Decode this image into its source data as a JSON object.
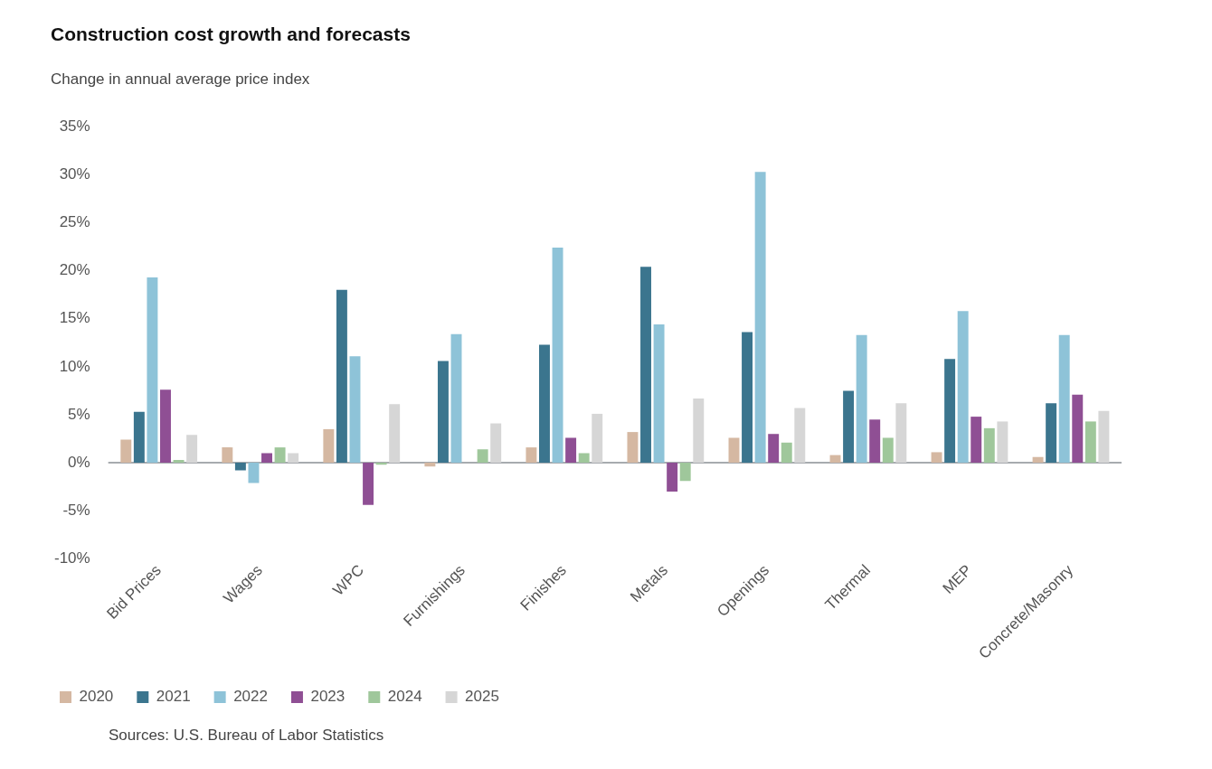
{
  "chart_data": {
    "type": "bar",
    "title": "Construction cost growth and forecasts",
    "subtitle": "Change in annual average price index",
    "categories": [
      "Bid Prices",
      "Wages",
      "WPC",
      "Furnishings",
      "Finishes",
      "Metals",
      "Openings",
      "Thermal",
      "MEP",
      "Concrete/Masonry"
    ],
    "series": [
      {
        "name": "2020",
        "color": "#d5b8a2",
        "values": [
          2.4,
          1.6,
          3.5,
          -0.4,
          1.6,
          3.2,
          2.6,
          0.8,
          1.1,
          0.6
        ]
      },
      {
        "name": "2021",
        "color": "#3b758e",
        "values": [
          5.3,
          -0.8,
          18.0,
          10.6,
          12.3,
          20.4,
          13.6,
          7.5,
          10.8,
          6.2
        ]
      },
      {
        "name": "2022",
        "color": "#8ec3d8",
        "values": [
          19.3,
          -2.1,
          11.1,
          13.4,
          22.4,
          14.4,
          30.3,
          13.3,
          15.8,
          13.3
        ]
      },
      {
        "name": "2023",
        "color": "#8f4f94",
        "values": [
          7.6,
          1.0,
          -4.4,
          null,
          2.6,
          -3.0,
          3.0,
          4.5,
          4.8,
          7.1
        ]
      },
      {
        "name": "2024",
        "color": "#9fc79b",
        "values": [
          0.3,
          1.6,
          -0.2,
          1.4,
          1.0,
          -1.9,
          2.1,
          2.6,
          3.6,
          4.3
        ]
      },
      {
        "name": "2025",
        "color": "#d6d6d6",
        "values": [
          2.9,
          1.0,
          6.1,
          4.1,
          5.1,
          6.7,
          5.7,
          6.2,
          4.3,
          5.4
        ]
      }
    ],
    "ylim": [
      -10,
      35
    ],
    "yticks": [
      {
        "value": -10,
        "label": "-10%"
      },
      {
        "value": -5,
        "label": "-5%"
      },
      {
        "value": 0,
        "label": "0%"
      },
      {
        "value": 5,
        "label": "5%"
      },
      {
        "value": 10,
        "label": "10%"
      },
      {
        "value": 15,
        "label": "15%"
      },
      {
        "value": 20,
        "label": "20%"
      },
      {
        "value": 25,
        "label": "25%"
      },
      {
        "value": 30,
        "label": "30%"
      },
      {
        "value": 35,
        "label": "35%"
      }
    ],
    "grid": false,
    "legend": "bottom left",
    "ref_lines": [
      {
        "axis": "y",
        "value": 0,
        "color": "#8a8f94"
      }
    ],
    "annotations": [
      "Sources: U.S. Bureau of Labor Statistics"
    ]
  }
}
